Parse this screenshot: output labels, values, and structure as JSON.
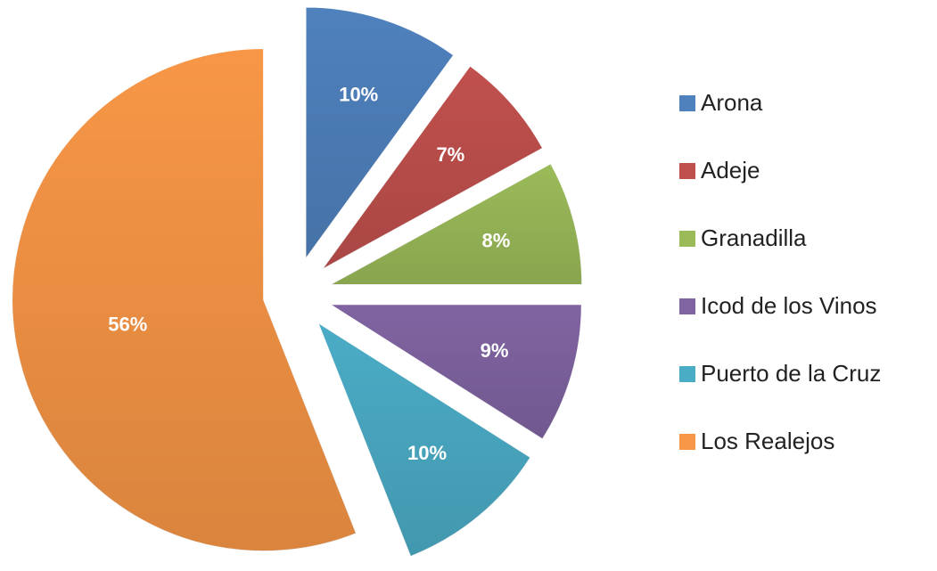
{
  "chart_data": {
    "type": "pie",
    "categories": [
      "Arona",
      "Adeje",
      "Granadilla",
      "Icod de los Vinos",
      "Puerto de la Cruz",
      "Los Realejos"
    ],
    "values": [
      10,
      7,
      8,
      9,
      10,
      56
    ],
    "value_labels": [
      "10%",
      "7%",
      "8%",
      "9%",
      "10%",
      "56%"
    ],
    "colors": [
      "#4f81bd",
      "#c0504d",
      "#9bbb59",
      "#8064a2",
      "#4bacc6",
      "#f79646"
    ],
    "legend": "right"
  }
}
